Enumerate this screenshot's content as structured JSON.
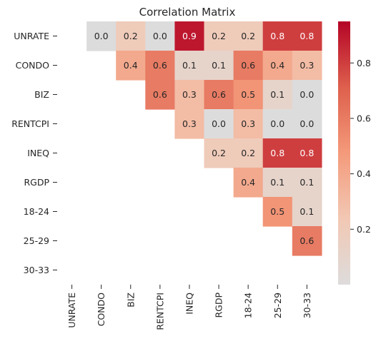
{
  "chart_data": {
    "type": "heatmap",
    "title": "Correlation Matrix",
    "rows": [
      "UNRATE",
      "CONDO",
      "BIZ",
      "RENTCPI",
      "INEQ",
      "RGDP",
      "18-24",
      "25-29",
      "30-33"
    ],
    "columns": [
      "UNRATE",
      "CONDO",
      "BIZ",
      "RENTCPI",
      "INEQ",
      "RGDP",
      "18-24",
      "25-29",
      "30-33"
    ],
    "masked": "lower triangle and diagonal",
    "values": [
      [
        null,
        0.0,
        0.2,
        0.0,
        0.9,
        0.2,
        0.2,
        0.8,
        0.8
      ],
      [
        null,
        null,
        0.4,
        0.6,
        0.1,
        0.1,
        0.6,
        0.4,
        0.3
      ],
      [
        null,
        null,
        null,
        0.6,
        0.3,
        0.6,
        0.5,
        0.1,
        0.0
      ],
      [
        null,
        null,
        null,
        null,
        0.3,
        0.0,
        0.3,
        0.0,
        0.0
      ],
      [
        null,
        null,
        null,
        null,
        null,
        0.2,
        0.2,
        0.8,
        0.8
      ],
      [
        null,
        null,
        null,
        null,
        null,
        null,
        0.4,
        0.1,
        0.1
      ],
      [
        null,
        null,
        null,
        null,
        null,
        null,
        null,
        0.5,
        0.1
      ],
      [
        null,
        null,
        null,
        null,
        null,
        null,
        null,
        null,
        0.6
      ],
      [
        null,
        null,
        null,
        null,
        null,
        null,
        null,
        null,
        null
      ]
    ],
    "colormap": "coolwarm (centered at 0)",
    "colorbar": {
      "range": [
        0.0,
        0.95
      ],
      "ticks": [
        0.2,
        0.4,
        0.6,
        0.8
      ],
      "tick_labels": [
        "0.2",
        "0.4",
        "0.6",
        "0.8"
      ]
    },
    "colors": {
      "low": "#dddcdc",
      "high": "#b40426"
    },
    "grid": false,
    "legend": "colorbar right"
  }
}
